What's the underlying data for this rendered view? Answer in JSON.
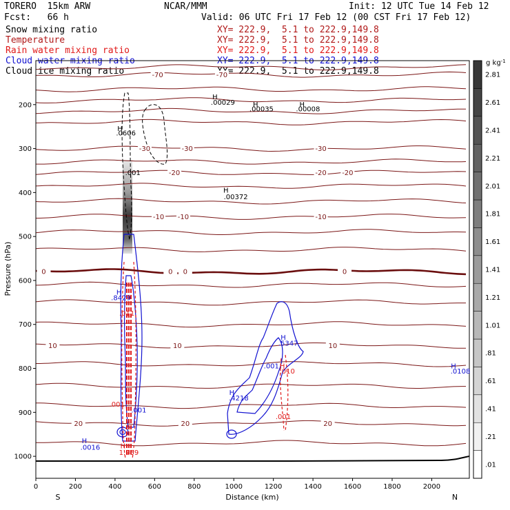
{
  "header": {
    "model": "TORERO  15km ARW",
    "forecast": "Fcst:   66 h",
    "center": "NCAR/MMM",
    "init": "Init: 12 UTC Tue 14 Feb 12",
    "valid": "Valid: 06 UTC Fri 17 Feb 12 (00 CST Fri 17 Feb 12)"
  },
  "fields": [
    {
      "name": "Snow mixing ratio",
      "xy": "XY= 222.9,  5.1 to 222.9,149.8",
      "color": "#000000"
    },
    {
      "name": "Temperature",
      "xy": "XY= 222.9,  5.1 to 222.9,149.8",
      "color": "#b01818"
    },
    {
      "name": "Rain water mixing ratio",
      "xy": "XY= 222.9,  5.1 to 222.9,149.8",
      "color": "#e01818"
    },
    {
      "name": "Cloud water mixing ratio",
      "xy": "XY= 222.9,  5.1 to 222.9,149.8",
      "color": "#1010d0"
    },
    {
      "name": "Cloud ice mixing ratio",
      "xy": "XY= 222.9,  5.1 to 222.9,149.8",
      "color": "#000000"
    }
  ],
  "chart_data": {
    "type": "line",
    "title": "",
    "xlabel": "Distance (km)",
    "ylabel": "Pressure (hPa)",
    "xlim": [
      0,
      2190
    ],
    "ylim": [
      1050,
      100
    ],
    "x_ticks": [
      0,
      200,
      400,
      600,
      800,
      1000,
      1200,
      1400,
      1600,
      1800,
      2000
    ],
    "y_ticks": [
      200,
      300,
      400,
      500,
      600,
      700,
      800,
      900,
      1000
    ],
    "x_end_labels": {
      "left": "S",
      "right": "N"
    },
    "colorbar": {
      "unit": "g kg",
      "unit_exp": "-1",
      "labels": [
        ".01",
        ".21",
        ".41",
        ".61",
        ".81",
        "1.01",
        "1.21",
        "1.41",
        "1.61",
        "1.81",
        "2.01",
        "2.21",
        "2.41",
        "2.61",
        "2.81"
      ]
    },
    "temperature_isotherms": [
      {
        "value": -70,
        "p": 115
      },
      {
        "value": -70,
        "p": 132
      },
      {
        "value": null,
        "p": 165
      },
      {
        "value": null,
        "p": 190
      },
      {
        "value": null,
        "p": 215
      },
      {
        "value": null,
        "p": 240
      },
      {
        "value": -30,
        "p": 300
      },
      {
        "value": null,
        "p": 330
      },
      {
        "value": -20,
        "p": 355
      },
      {
        "value": null,
        "p": 385
      },
      {
        "value": null,
        "p": 420
      },
      {
        "value": -10,
        "p": 455
      },
      {
        "value": null,
        "p": 490
      },
      {
        "value": null,
        "p": 530
      },
      {
        "value": 0,
        "p": 580
      },
      {
        "value": null,
        "p": 610
      },
      {
        "value": null,
        "p": 650
      },
      {
        "value": null,
        "p": 700
      },
      {
        "value": 10,
        "p": 748
      },
      {
        "value": null,
        "p": 790
      },
      {
        "value": null,
        "p": 840
      },
      {
        "value": null,
        "p": 885
      },
      {
        "value": 20,
        "p": 925
      },
      {
        "value": null,
        "p": 970
      }
    ],
    "temperature_labels": [
      {
        "text": "-70",
        "x": 615,
        "p": 132
      },
      {
        "text": "-70",
        "x": 940,
        "p": 132
      },
      {
        "text": "-30",
        "x": 550,
        "p": 300
      },
      {
        "text": "-30",
        "x": 765,
        "p": 300
      },
      {
        "text": "-30",
        "x": 1440,
        "p": 300
      },
      {
        "text": "-20",
        "x": 700,
        "p": 355
      },
      {
        "text": "-20",
        "x": 1440,
        "p": 355
      },
      {
        "text": "-20",
        "x": 1575,
        "p": 355
      },
      {
        "text": "-10",
        "x": 620,
        "p": 455
      },
      {
        "text": "-10",
        "x": 745,
        "p": 455
      },
      {
        "text": "-10",
        "x": 1440,
        "p": 455
      },
      {
        "text": "0",
        "x": 40,
        "p": 580
      },
      {
        "text": "0",
        "x": 680,
        "p": 580
      },
      {
        "text": "0",
        "x": 755,
        "p": 580
      },
      {
        "text": "0",
        "x": 1560,
        "p": 580
      },
      {
        "text": "10",
        "x": 85,
        "p": 748
      },
      {
        "text": "10",
        "x": 715,
        "p": 748
      },
      {
        "text": "10",
        "x": 1500,
        "p": 748
      },
      {
        "text": "20",
        "x": 215,
        "p": 925
      },
      {
        "text": "20",
        "x": 755,
        "p": 925
      },
      {
        "text": "20",
        "x": 1475,
        "p": 925
      }
    ],
    "maxima_labels": [
      {
        "text": ".00029",
        "x": 945,
        "p": 200,
        "color": "#000000"
      },
      {
        "text": ".00035",
        "x": 1140,
        "p": 215,
        "color": "#000000"
      },
      {
        "text": ".00008",
        "x": 1375,
        "p": 215,
        "color": "#000000"
      },
      {
        "text": ".0606",
        "x": 455,
        "p": 270,
        "color": "#000000"
      },
      {
        "text": ".001",
        "x": 490,
        "p": 360,
        "color": "#000000"
      },
      {
        "text": ".00372",
        "x": 1010,
        "p": 415,
        "color": "#000000"
      },
      {
        "text": ".8429",
        "x": 430,
        "p": 645,
        "color": "#1010d0"
      },
      {
        "text": ".011",
        "x": 460,
        "p": 680,
        "color": "#e01818"
      },
      {
        "text": ".5347",
        "x": 1275,
        "p": 748,
        "color": "#1010d0"
      },
      {
        "text": ".001",
        "x": 1190,
        "p": 800,
        "color": "#1010d0"
      },
      {
        "text": ".010",
        "x": 1270,
        "p": 812,
        "color": "#e01818"
      },
      {
        "text": ".0108",
        "x": 2145,
        "p": 812,
        "color": "#1010d0"
      },
      {
        "text": ".4218",
        "x": 1025,
        "p": 873,
        "color": "#1010d0"
      },
      {
        "text": ".001",
        "x": 410,
        "p": 887,
        "color": "#e01818"
      },
      {
        "text": ".001",
        "x": 1250,
        "p": 915,
        "color": "#e01818"
      },
      {
        "text": ".001",
        "x": 520,
        "p": 900,
        "color": "#1010d0"
      },
      {
        "text": ".0016",
        "x": 275,
        "p": 985,
        "color": "#1010d0"
      },
      {
        "text": "1.259",
        "x": 470,
        "p": 997,
        "color": "#e01818"
      }
    ],
    "h_markers": [
      {
        "x": 905,
        "p": 188,
        "color": "#000000"
      },
      {
        "x": 1110,
        "p": 205,
        "color": "#000000"
      },
      {
        "x": 1345,
        "p": 205,
        "color": "#000000"
      },
      {
        "x": 425,
        "p": 260,
        "color": "#000000"
      },
      {
        "x": 960,
        "p": 400,
        "color": "#000000"
      },
      {
        "x": 420,
        "p": 632,
        "color": "#1010d0"
      },
      {
        "x": 1250,
        "p": 735,
        "color": "#1010d0"
      },
      {
        "x": 1245,
        "p": 800,
        "color": "#e01818"
      },
      {
        "x": 2110,
        "p": 800,
        "color": "#1010d0"
      },
      {
        "x": 990,
        "p": 860,
        "color": "#1010d0"
      },
      {
        "x": 245,
        "p": 970,
        "color": "#1010d0"
      },
      {
        "x": 440,
        "p": 982,
        "color": "#e01818"
      }
    ]
  }
}
